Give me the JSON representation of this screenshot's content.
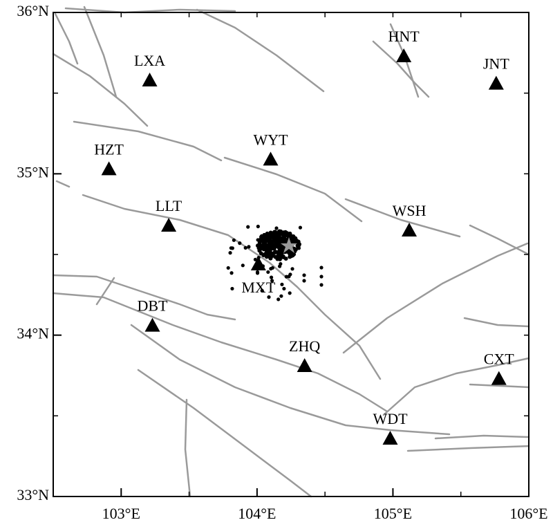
{
  "map": {
    "lonlim": [
      102.5,
      106
    ],
    "latlim": [
      33,
      36
    ],
    "lonticks": [
      {
        "value": 103,
        "label": "103°E"
      },
      {
        "value": 104,
        "label": "104°E"
      },
      {
        "value": 105,
        "label": "105°E"
      },
      {
        "value": 106,
        "label": "106°E"
      }
    ],
    "latticks": [
      {
        "value": 33,
        "label": "33°N"
      },
      {
        "value": 34,
        "label": "34°N"
      },
      {
        "value": 35,
        "label": "35°N"
      },
      {
        "value": 36,
        "label": "36°N"
      }
    ],
    "stations": [
      {
        "name": "LXA",
        "lon": 103.21,
        "lat": 35.58
      },
      {
        "name": "HNT",
        "lon": 105.08,
        "lat": 35.73
      },
      {
        "name": "JNT",
        "lon": 105.76,
        "lat": 35.56
      },
      {
        "name": "HZT",
        "lon": 102.91,
        "lat": 35.03
      },
      {
        "name": "WYT",
        "lon": 104.1,
        "lat": 35.09
      },
      {
        "name": "LLT",
        "lon": 103.35,
        "lat": 34.68
      },
      {
        "name": "WSH",
        "lon": 105.12,
        "lat": 34.65
      },
      {
        "name": "MXT",
        "lon": 104.01,
        "lat": 34.44
      },
      {
        "name": "DBT",
        "lon": 103.23,
        "lat": 34.06
      },
      {
        "name": "ZHQ",
        "lon": 104.35,
        "lat": 33.81
      },
      {
        "name": "CXT",
        "lon": 105.78,
        "lat": 33.73
      },
      {
        "name": "WDT",
        "lon": 104.98,
        "lat": 33.36
      }
    ]
  }
}
